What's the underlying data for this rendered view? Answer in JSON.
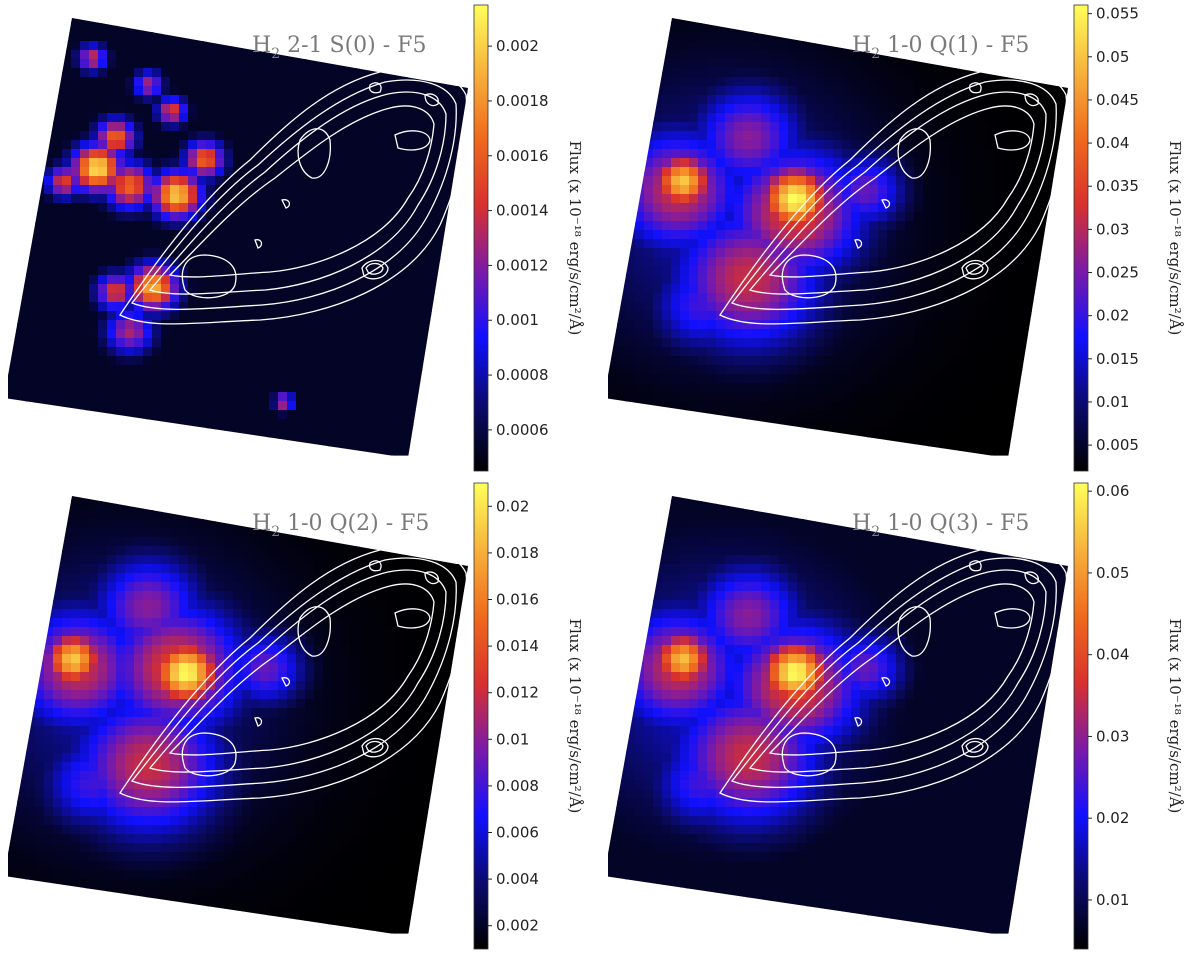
{
  "colors": {
    "contour": "#ffffff",
    "title_text": "#7a7a7a",
    "colormap": [
      "#000000",
      "#0a0a6e",
      "#1010ff",
      "#7a1aa8",
      "#d8302e",
      "#f06a1c",
      "#f7b23c",
      "#ffff5a"
    ]
  },
  "chart_data": [
    {
      "type": "heatmap",
      "title": {
        "main": "H",
        "sub": "2",
        "rest": " 2-1 S(0) - F5"
      },
      "colorbar": {
        "label": "Flux (x 10⁻¹⁸ erg/s/cm²/Å)",
        "range": [
          0.00045,
          0.00215
        ],
        "ticks": [
          0.0006,
          0.0008,
          0.001,
          0.0012,
          0.0014,
          0.0016,
          0.0018,
          0.002
        ],
        "tick_labels": [
          "0.0006",
          "0.0008",
          "0.001",
          "0.0012",
          "0.0014",
          "0.0016",
          "0.0018",
          "0.002"
        ]
      },
      "background_level": 0.05,
      "blobs": [
        {
          "x": 0.19,
          "y": 0.35,
          "level": 0.95,
          "r": 0.05
        },
        {
          "x": 0.26,
          "y": 0.39,
          "level": 0.7,
          "r": 0.05
        },
        {
          "x": 0.36,
          "y": 0.41,
          "level": 0.9,
          "r": 0.05
        },
        {
          "x": 0.42,
          "y": 0.33,
          "level": 0.7,
          "r": 0.04
        },
        {
          "x": 0.23,
          "y": 0.28,
          "level": 0.7,
          "r": 0.04
        },
        {
          "x": 0.12,
          "y": 0.38,
          "level": 0.6,
          "r": 0.035
        },
        {
          "x": 0.31,
          "y": 0.62,
          "level": 0.85,
          "r": 0.05
        },
        {
          "x": 0.23,
          "y": 0.63,
          "level": 0.6,
          "r": 0.04
        },
        {
          "x": 0.26,
          "y": 0.72,
          "level": 0.5,
          "r": 0.05
        },
        {
          "x": 0.18,
          "y": 0.1,
          "level": 0.55,
          "r": 0.03
        },
        {
          "x": 0.3,
          "y": 0.16,
          "level": 0.5,
          "r": 0.03
        },
        {
          "x": 0.35,
          "y": 0.22,
          "level": 0.6,
          "r": 0.03
        },
        {
          "x": 0.59,
          "y": 0.88,
          "level": 0.55,
          "r": 0.02
        }
      ]
    },
    {
      "type": "heatmap",
      "title": {
        "main": "H",
        "sub": "2",
        "rest": " 1-0 Q(1) - F5"
      },
      "colorbar": {
        "label": "Flux (x 10⁻¹⁸ erg/s/cm²/Å)",
        "range": [
          0.002,
          0.056
        ],
        "ticks": [
          0.005,
          0.01,
          0.015,
          0.02,
          0.025,
          0.03,
          0.035,
          0.04,
          0.045,
          0.05,
          0.055
        ],
        "tick_labels": [
          "0.005",
          "0.01",
          "0.015",
          "0.02",
          "0.025",
          "0.03",
          "0.035",
          "0.04",
          "0.045",
          "0.05",
          "0.055"
        ]
      },
      "background_level": 0.0,
      "blobs": [
        {
          "x": 0.25,
          "y": 0.45,
          "level": 0.22,
          "r": 0.3
        },
        {
          "x": 0.15,
          "y": 0.4,
          "level": 0.55,
          "r": 0.13
        },
        {
          "x": 0.16,
          "y": 0.38,
          "level": 0.9,
          "r": 0.06
        },
        {
          "x": 0.4,
          "y": 0.45,
          "level": 0.6,
          "r": 0.14
        },
        {
          "x": 0.4,
          "y": 0.42,
          "level": 1.0,
          "r": 0.07
        },
        {
          "x": 0.3,
          "y": 0.6,
          "level": 0.55,
          "r": 0.15
        },
        {
          "x": 0.3,
          "y": 0.28,
          "level": 0.45,
          "r": 0.11
        },
        {
          "x": 0.55,
          "y": 0.4,
          "level": 0.4,
          "r": 0.08
        },
        {
          "x": 0.2,
          "y": 0.66,
          "level": 0.35,
          "r": 0.1
        }
      ]
    },
    {
      "type": "heatmap",
      "title": {
        "main": "H",
        "sub": "2",
        "rest": " 1-0 Q(2) - F5"
      },
      "colorbar": {
        "label": "Flux (x 10⁻¹⁸ erg/s/cm²/Å)",
        "range": [
          0.001,
          0.021
        ],
        "ticks": [
          0.002,
          0.004,
          0.006,
          0.008,
          0.01,
          0.012,
          0.014,
          0.016,
          0.018,
          0.02
        ],
        "tick_labels": [
          "0.002",
          "0.004",
          "0.006",
          "0.008",
          "0.01",
          "0.012",
          "0.014",
          "0.016",
          "0.018",
          "0.02"
        ]
      },
      "background_level": 0.0,
      "blobs": [
        {
          "x": 0.25,
          "y": 0.45,
          "level": 0.22,
          "r": 0.3
        },
        {
          "x": 0.15,
          "y": 0.4,
          "level": 0.55,
          "r": 0.13
        },
        {
          "x": 0.14,
          "y": 0.38,
          "level": 0.9,
          "r": 0.06
        },
        {
          "x": 0.36,
          "y": 0.4,
          "level": 0.6,
          "r": 0.14
        },
        {
          "x": 0.38,
          "y": 0.41,
          "level": 1.0,
          "r": 0.07
        },
        {
          "x": 0.3,
          "y": 0.62,
          "level": 0.55,
          "r": 0.15
        },
        {
          "x": 0.3,
          "y": 0.26,
          "level": 0.45,
          "r": 0.11
        },
        {
          "x": 0.55,
          "y": 0.4,
          "level": 0.4,
          "r": 0.08
        },
        {
          "x": 0.18,
          "y": 0.66,
          "level": 0.35,
          "r": 0.1
        }
      ]
    },
    {
      "type": "heatmap",
      "title": {
        "main": "H",
        "sub": "2",
        "rest": " 1-0 Q(3) - F5"
      },
      "colorbar": {
        "label": "Flux (x 10⁻¹⁸ erg/s/cm²/Å)",
        "range": [
          0.004,
          0.061
        ],
        "ticks": [
          0.01,
          0.02,
          0.03,
          0.04,
          0.05,
          0.06
        ],
        "tick_labels": [
          "0.01",
          "0.02",
          "0.03",
          "0.04",
          "0.05",
          "0.06"
        ]
      },
      "background_level": 0.05,
      "blobs": [
        {
          "x": 0.25,
          "y": 0.45,
          "level": 0.25,
          "r": 0.3
        },
        {
          "x": 0.15,
          "y": 0.4,
          "level": 0.55,
          "r": 0.13
        },
        {
          "x": 0.16,
          "y": 0.38,
          "level": 0.88,
          "r": 0.06
        },
        {
          "x": 0.4,
          "y": 0.44,
          "level": 0.6,
          "r": 0.14
        },
        {
          "x": 0.4,
          "y": 0.41,
          "level": 1.0,
          "r": 0.07
        },
        {
          "x": 0.3,
          "y": 0.6,
          "level": 0.55,
          "r": 0.15
        },
        {
          "x": 0.3,
          "y": 0.28,
          "level": 0.45,
          "r": 0.11
        },
        {
          "x": 0.55,
          "y": 0.4,
          "level": 0.4,
          "r": 0.08
        },
        {
          "x": 0.2,
          "y": 0.66,
          "level": 0.35,
          "r": 0.1
        }
      ]
    }
  ]
}
